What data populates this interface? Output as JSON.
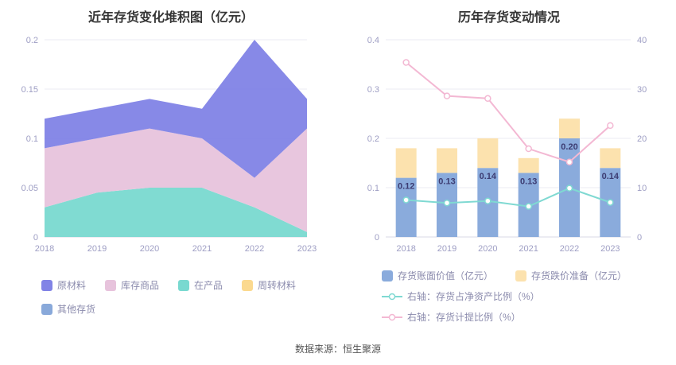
{
  "source": "数据来源：恒生聚源",
  "colors": {
    "tick_label": "#9e9ec4",
    "grid_line": "#ebebf3",
    "axis_line": "#d9d9e6",
    "bar_label": "#3c3c72",
    "title": "#363636",
    "legend_text": "#8b8bad"
  },
  "chart_data": [
    {
      "type": "area",
      "stacked": true,
      "title": "近年存货变化堆积图（亿元）",
      "categories": [
        "2018",
        "2019",
        "2020",
        "2021",
        "2022",
        "2023"
      ],
      "ylim": [
        0,
        0.2
      ],
      "yticks": [
        0,
        0.05,
        0.1,
        0.15,
        0.2
      ],
      "grid": true,
      "legend_position": "bottom",
      "stack_order": [
        "在产品",
        "库存商品",
        "原材料",
        "周转材料",
        "其他存货"
      ],
      "series": [
        {
          "name": "原材料",
          "color": "#8183e6",
          "values": [
            0.03,
            0.03,
            0.03,
            0.03,
            0.14,
            0.03
          ]
        },
        {
          "name": "库存商品",
          "color": "#e7c3dc",
          "values": [
            0.06,
            0.055,
            0.06,
            0.05,
            0.03,
            0.105
          ]
        },
        {
          "name": "在产品",
          "color": "#79d9d0",
          "values": [
            0.03,
            0.045,
            0.05,
            0.05,
            0.03,
            0.005
          ]
        },
        {
          "name": "周转材料",
          "color": "#fbd98f",
          "values": [
            0,
            0,
            0,
            0,
            0,
            0
          ]
        },
        {
          "name": "其他存货",
          "color": "#89a9da",
          "values": [
            0,
            0,
            0,
            0,
            0,
            0
          ]
        }
      ]
    },
    {
      "type": "bar+line",
      "title": "历年存货变动情况",
      "categories": [
        "2018",
        "2019",
        "2020",
        "2021",
        "2022",
        "2023"
      ],
      "left_axis": {
        "lim": [
          0,
          0.4
        ],
        "ticks": [
          0,
          0.1,
          0.2,
          0.3,
          0.4
        ]
      },
      "right_axis": {
        "lim": [
          0,
          40
        ],
        "ticks": [
          0,
          10,
          20,
          30,
          40
        ]
      },
      "grid": true,
      "legend_position": "bottom",
      "bars": [
        {
          "name": "存货账面价值（亿元）",
          "color": "#8aabdc",
          "values": [
            0.12,
            0.13,
            0.14,
            0.13,
            0.2,
            0.14
          ],
          "labels": [
            "0.12",
            "0.13",
            "0.14",
            "0.13",
            "0.20",
            "0.14"
          ]
        },
        {
          "name": "存货跌价准备（亿元）",
          "color": "#fce2ae",
          "values": [
            0.06,
            0.05,
            0.06,
            0.03,
            0.04,
            0.04
          ]
        }
      ],
      "lines": [
        {
          "name": "右轴：存货占净资产比例（%）",
          "color": "#7fd9d2",
          "axis": "right",
          "values": [
            7.5,
            6.9,
            7.3,
            6.2,
            9.9,
            7.0
          ]
        },
        {
          "name": "右轴：存货计提比例（%）",
          "color": "#f3b8d3",
          "axis": "right",
          "values": [
            35.4,
            28.6,
            28.1,
            17.9,
            15.2,
            22.6
          ]
        }
      ]
    }
  ]
}
